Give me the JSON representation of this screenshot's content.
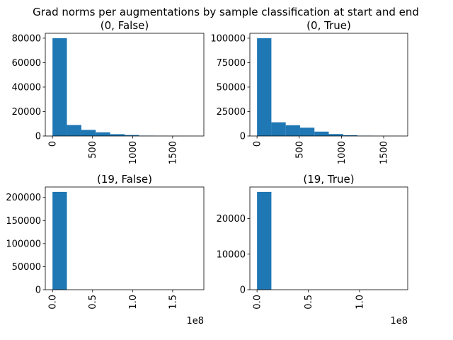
{
  "suptitle": "Grad norms per augmentations by sample classification at start and end",
  "colors": {
    "bar": "#1f77b4",
    "axis": "#000000",
    "background": "#ffffff"
  },
  "chart_data": [
    {
      "type": "bar",
      "title": "(0, False)",
      "bin_edges": [
        0,
        180,
        360,
        540,
        720,
        900,
        1080,
        1260,
        1440,
        1620,
        1800
      ],
      "values": [
        80000,
        9000,
        5000,
        3000,
        1500,
        800,
        300,
        150,
        80,
        40
      ],
      "xlim": [
        -90,
        1890
      ],
      "ylim": [
        0,
        84000
      ],
      "xticks": [
        0,
        500,
        1000,
        1500
      ],
      "xtick_labels": [
        "0",
        "500",
        "1000",
        "1500"
      ],
      "yticks": [
        0,
        20000,
        40000,
        60000,
        80000
      ],
      "ytick_labels": [
        "0",
        "20000",
        "40000",
        "60000",
        "80000"
      ],
      "offset_label": ""
    },
    {
      "type": "bar",
      "title": "(0, True)",
      "bin_edges": [
        0,
        170,
        340,
        510,
        680,
        850,
        1020,
        1190,
        1360,
        1530,
        1700
      ],
      "values": [
        100000,
        14000,
        11000,
        8500,
        4500,
        2000,
        800,
        300,
        150,
        80
      ],
      "xlim": [
        -85,
        1785
      ],
      "ylim": [
        0,
        105000
      ],
      "xticks": [
        0,
        500,
        1000,
        1500
      ],
      "xtick_labels": [
        "0",
        "500",
        "1000",
        "1500"
      ],
      "yticks": [
        0,
        25000,
        50000,
        75000,
        100000
      ],
      "ytick_labels": [
        "0",
        "25000",
        "50000",
        "75000",
        "100000"
      ],
      "offset_label": ""
    },
    {
      "type": "bar",
      "title": "(19, False)",
      "bin_edges": [
        0,
        18000000,
        36000000,
        54000000,
        72000000,
        90000000,
        108000000,
        126000000,
        144000000,
        162000000,
        180000000
      ],
      "values": [
        212000,
        5,
        2,
        1,
        1,
        0,
        0,
        0,
        0,
        1
      ],
      "xlim": [
        -9000000,
        189000000
      ],
      "ylim": [
        0,
        222600
      ],
      "xticks": [
        0,
        50000000,
        100000000,
        150000000
      ],
      "xtick_labels": [
        "0.0",
        "0.5",
        "1.0",
        "1.5"
      ],
      "yticks": [
        0,
        50000,
        100000,
        150000,
        200000
      ],
      "ytick_labels": [
        "0",
        "50000",
        "100000",
        "150000",
        "200000"
      ],
      "offset_label": "1e8"
    },
    {
      "type": "bar",
      "title": "(19, True)",
      "bin_edges": [
        0,
        14000000,
        28000000,
        42000000,
        56000000,
        70000000,
        84000000,
        98000000,
        112000000,
        126000000,
        140000000
      ],
      "values": [
        27500,
        3,
        1,
        1,
        0,
        0,
        0,
        0,
        0,
        1
      ],
      "xlim": [
        -7000000,
        147000000
      ],
      "ylim": [
        0,
        28875
      ],
      "xticks": [
        0,
        50000000,
        100000000
      ],
      "xtick_labels": [
        "0.0",
        "0.5",
        "1.0"
      ],
      "yticks": [
        0,
        10000,
        20000
      ],
      "ytick_labels": [
        "0",
        "10000",
        "20000"
      ],
      "offset_label": "1e8"
    }
  ]
}
